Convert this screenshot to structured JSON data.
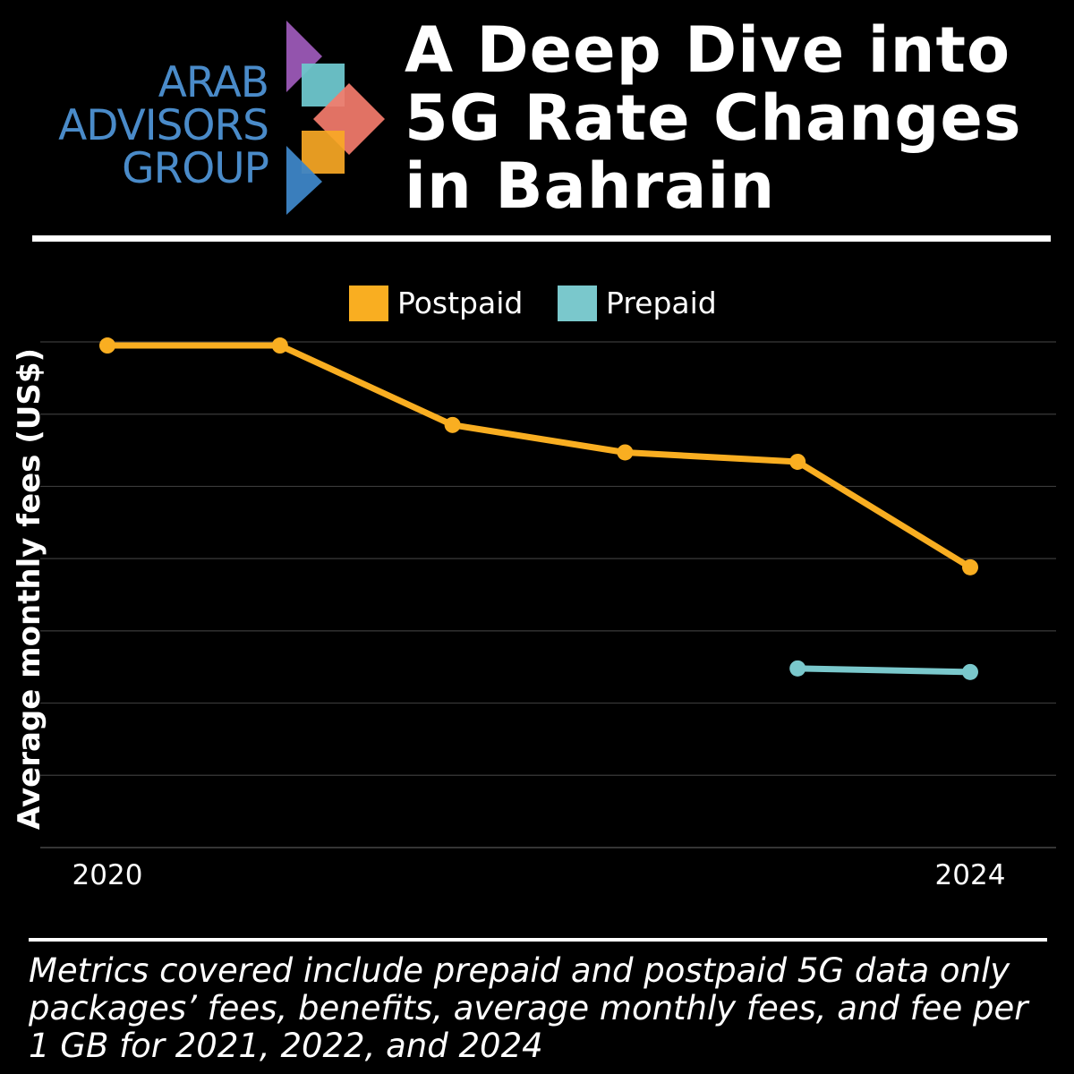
{
  "logo": {
    "lines": [
      "ARAB",
      "ADVISORS",
      "GROUP"
    ],
    "colors": {
      "text": "#4a8bc9",
      "purple": "#9b59b6",
      "teal": "#6ec6cc",
      "salmon": "#f47c6c",
      "orange": "#f9a825",
      "blue": "#3d85c6"
    }
  },
  "title": {
    "lines": [
      "A Deep Dive into",
      "5G Rate Changes",
      "in Bahrain"
    ]
  },
  "chart_data": {
    "type": "line",
    "title": "",
    "ylabel": "Average monthly fees (US$)",
    "xlabel": "",
    "x": [
      0,
      1,
      2,
      3,
      4,
      5
    ],
    "x_tick_labels": [
      {
        "x": 0,
        "label": "2020"
      },
      {
        "x": 5,
        "label": "2024"
      }
    ],
    "ylim": [
      0,
      7
    ],
    "gridlines": [
      1,
      2,
      3,
      4,
      5,
      6,
      7
    ],
    "grid": true,
    "legend": "top-center",
    "series": [
      {
        "name": "Postpaid",
        "color": "#f9ae21",
        "values": [
          6.95,
          6.95,
          5.85,
          5.47,
          5.34,
          3.88
        ]
      },
      {
        "name": "Prepaid",
        "color": "#7ac8cc",
        "values": [
          null,
          null,
          null,
          null,
          2.48,
          2.43
        ]
      }
    ]
  },
  "footer": {
    "text": "Metrics covered include prepaid and postpaid 5G data only packages’ fees, benefits, average monthly fees, and fee per 1 GB for 2021, 2022, and 2024"
  }
}
